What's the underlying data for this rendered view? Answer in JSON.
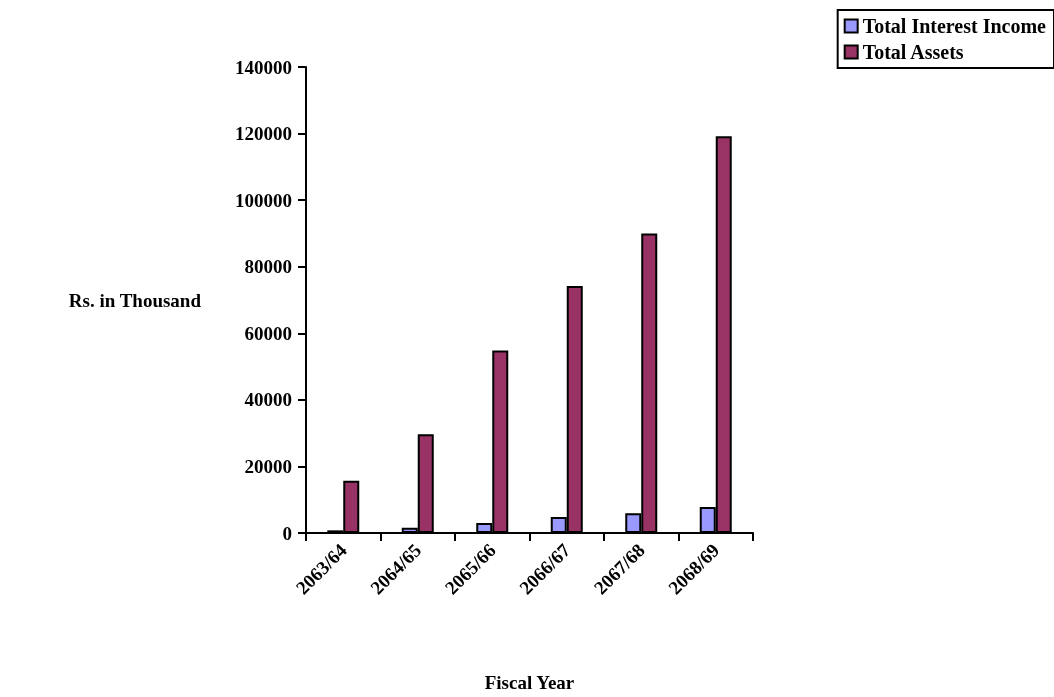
{
  "chart_data": {
    "type": "bar",
    "xlabel": "Fiscal Year",
    "ylabel": "Rs. in Thousand",
    "categories": [
      "2063/64",
      "2064/65",
      "2065/66",
      "2066/67",
      "2067/68",
      "2068/69"
    ],
    "series": [
      {
        "name": "Total Interest Income",
        "color": "#9999ff",
        "values": [
          800,
          1600,
          3000,
          4800,
          5900,
          7800
        ]
      },
      {
        "name": "Total Assets",
        "color": "#993366",
        "values": [
          15700,
          29700,
          54800,
          74200,
          90000,
          119200
        ]
      }
    ],
    "ylim": [
      0,
      140000
    ],
    "yticks": [
      0,
      20000,
      40000,
      60000,
      80000,
      100000,
      120000,
      140000
    ],
    "grid": false,
    "legend": "top right"
  }
}
